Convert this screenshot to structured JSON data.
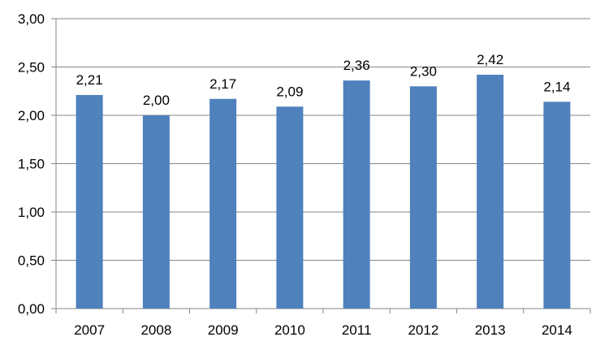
{
  "chart_data": {
    "type": "bar",
    "title": "",
    "xlabel": "",
    "ylabel": "",
    "categories": [
      "2007",
      "2008",
      "2009",
      "2010",
      "2011",
      "2012",
      "2013",
      "2014"
    ],
    "values": [
      2.21,
      2.0,
      2.17,
      2.09,
      2.36,
      2.3,
      2.42,
      2.14
    ],
    "data_labels": [
      "2,21",
      "2,00",
      "2,17",
      "2,09",
      "2,36",
      "2,30",
      "2,42",
      "2,14"
    ],
    "yticks": [
      "0,00",
      "0,50",
      "1,00",
      "1,50",
      "2,00",
      "2,50",
      "3,00"
    ],
    "ylim": [
      0,
      3
    ],
    "grid": true,
    "legend": "none",
    "bar_color": "#4F81BD",
    "gridline_color": "#868686"
  }
}
